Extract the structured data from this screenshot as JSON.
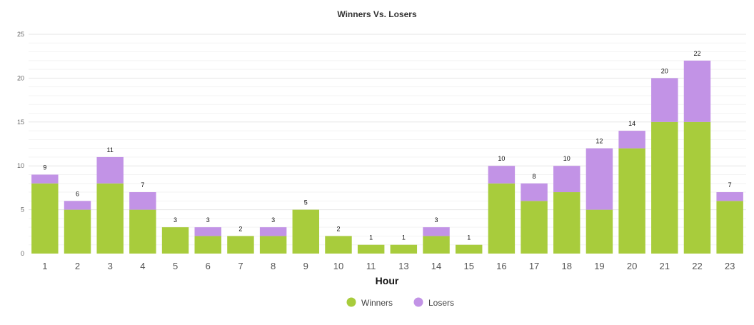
{
  "chart_data": {
    "type": "bar",
    "stacked": true,
    "title": "Winners Vs. Losers",
    "xlabel": "Hour",
    "ylabel": "",
    "ylim": [
      0,
      25
    ],
    "yticks": [
      0,
      5,
      10,
      15,
      20,
      25
    ],
    "grid": true,
    "legend_position": "bottom",
    "categories": [
      "1",
      "2",
      "3",
      "4",
      "5",
      "6",
      "7",
      "8",
      "9",
      "10",
      "11",
      "13",
      "14",
      "15",
      "16",
      "17",
      "18",
      "19",
      "20",
      "21",
      "22",
      "23"
    ],
    "series": [
      {
        "name": "Winners",
        "color": "#a8cc3c",
        "values": [
          8,
          5,
          8,
          5,
          3,
          2,
          2,
          2,
          5,
          2,
          1,
          1,
          2,
          1,
          8,
          6,
          7,
          5,
          12,
          15,
          15,
          6
        ]
      },
      {
        "name": "Losers",
        "color": "#c293e6",
        "values": [
          1,
          1,
          3,
          2,
          0,
          1,
          0,
          1,
          0,
          0,
          0,
          0,
          1,
          0,
          2,
          2,
          3,
          7,
          2,
          5,
          7,
          1
        ]
      }
    ],
    "totals": [
      9,
      6,
      11,
      7,
      3,
      3,
      2,
      3,
      5,
      2,
      1,
      1,
      3,
      1,
      10,
      8,
      10,
      12,
      14,
      20,
      22,
      7
    ]
  }
}
